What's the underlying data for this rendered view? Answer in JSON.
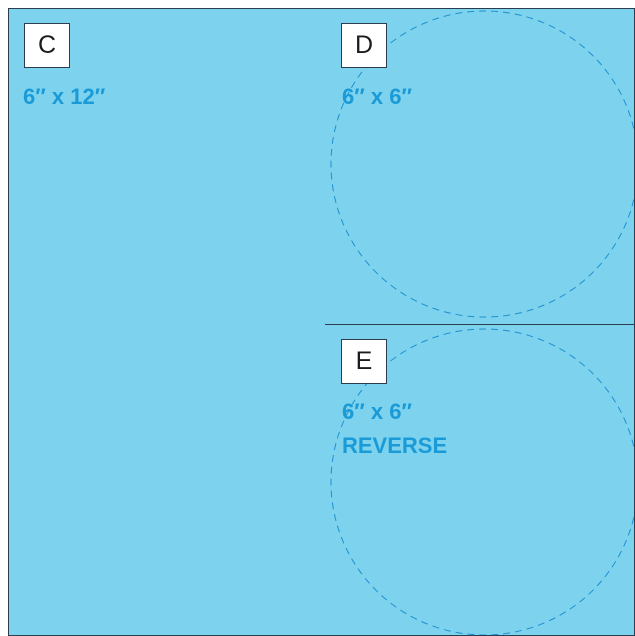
{
  "colors": {
    "panel_fill": "#7dd3ee",
    "border": "#2b3e4f",
    "label_text": "#1a9bd7",
    "dashed_circle": "#1f8fd0",
    "letter_box_fill": "#ffffff"
  },
  "panels": [
    {
      "id": "C",
      "letter": "C",
      "size": "6″ x 12″",
      "note": ""
    },
    {
      "id": "D",
      "letter": "D",
      "size": "6″ x 6″",
      "note": ""
    },
    {
      "id": "E",
      "letter": "E",
      "size": "6″ x 6″",
      "note": "REVERSE"
    }
  ]
}
